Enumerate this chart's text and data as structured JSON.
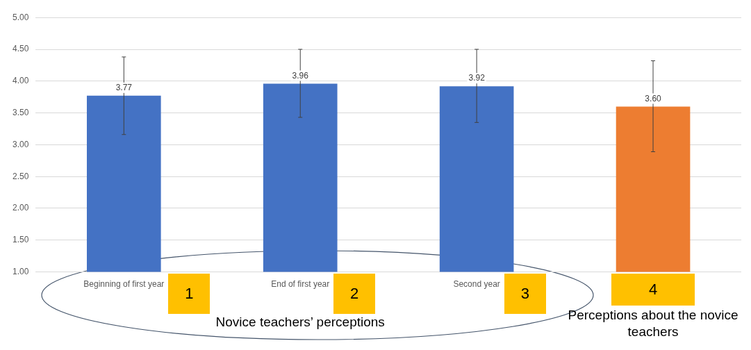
{
  "chart_data": {
    "type": "bar",
    "categories": [
      "Beginning of first year",
      "End of first year",
      "Second year",
      null
    ],
    "values": [
      3.77,
      3.96,
      3.92,
      3.6
    ],
    "value_labels": [
      "3.77",
      "3.96",
      "3.92",
      "3.60"
    ],
    "colors": [
      "#4472c4",
      "#4472c4",
      "#4472c4",
      "#ed7d31"
    ],
    "errors": [
      [
        3.16,
        4.38
      ],
      [
        3.43,
        4.5
      ],
      [
        3.35,
        4.5
      ],
      [
        2.89,
        4.32
      ]
    ],
    "ylim": [
      1,
      5
    ],
    "yticks": [
      {
        "value": 1,
        "label": "1.00"
      },
      {
        "value": 1.5,
        "label": "1.50"
      },
      {
        "value": 2,
        "label": "2.00"
      },
      {
        "value": 2.5,
        "label": "2.50"
      },
      {
        "value": 3,
        "label": "3.00"
      },
      {
        "value": 3.5,
        "label": "3.50"
      },
      {
        "value": 4,
        "label": "4.00"
      },
      {
        "value": 4.5,
        "label": "4.50"
      },
      {
        "value": 5,
        "label": "5.00"
      }
    ],
    "grid": "y",
    "legend": false,
    "annotations": [
      "1",
      "2",
      "3",
      "4",
      "Novice teachers’ perceptions",
      "Perceptions about the novice teachers"
    ]
  }
}
